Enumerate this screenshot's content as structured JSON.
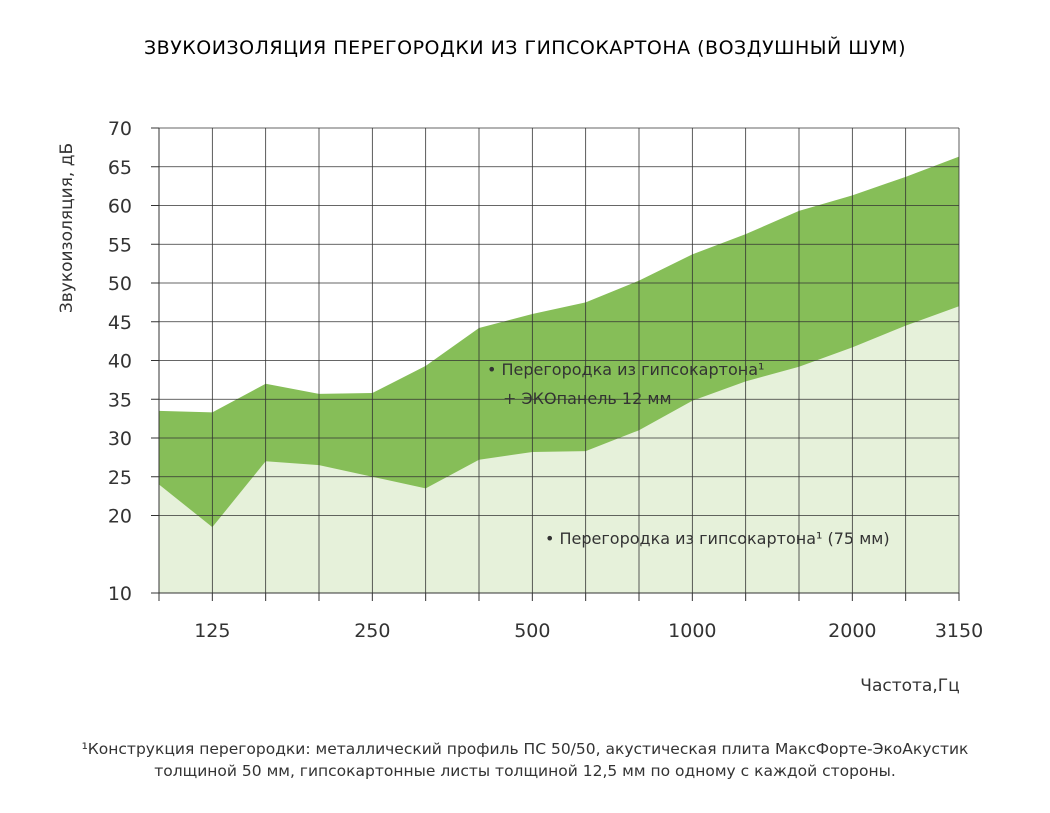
{
  "chart_data": {
    "type": "area",
    "title": "ЗВУКОИЗОЛЯЦИЯ ПЕРЕГОРОДКИ ИЗ ГИПСОКАРТОНА (ВОЗДУШНЫЙ ШУМ)",
    "ylabel": "Звукоизоляция, дБ",
    "xlabel": "Частота,Гц",
    "ylim": [
      10,
      70
    ],
    "yticks": [
      10,
      20,
      25,
      30,
      35,
      40,
      45,
      50,
      55,
      60,
      65,
      70
    ],
    "x_band_index_range": [
      0,
      15
    ],
    "xtick_labels": [
      {
        "band": 1,
        "label": "125"
      },
      {
        "band": 4,
        "label": "250"
      },
      {
        "band": 7,
        "label": "500"
      },
      {
        "band": 10,
        "label": "1000"
      },
      {
        "band": 13,
        "label": "2000"
      },
      {
        "band": 15,
        "label": "3150"
      }
    ],
    "grid": true,
    "series": [
      {
        "name": "Перегородка из гипсокартона¹ + ЭКОпанель 12 мм",
        "label_lines": [
          "• Перегородка из гипсокартона¹",
          "+ ЭКОпанель 12 мм"
        ],
        "color": "#86BE58",
        "x": [
          0,
          1,
          2,
          3,
          4,
          5,
          6,
          7,
          8,
          9,
          10,
          11,
          12,
          13,
          14,
          15
        ],
        "values": [
          33.5,
          33.3,
          37,
          35.7,
          35.8,
          39.3,
          44.2,
          46,
          47.5,
          50.3,
          53.7,
          56.3,
          59.3,
          61.3,
          63.7,
          66.3
        ]
      },
      {
        "name": "Перегородка из гипсокартона¹ (75 мм)",
        "label_lines": [
          "• Перегородка из гипсокартона¹  (75 мм)"
        ],
        "color": "#E6F1DA",
        "x": [
          0,
          1,
          2,
          3,
          4,
          5,
          6,
          7,
          8,
          9,
          10,
          11,
          12,
          13,
          14,
          15
        ],
        "values": [
          24,
          18.5,
          27,
          26.5,
          25,
          23.5,
          27.2,
          28.2,
          28.3,
          31,
          34.8,
          37.3,
          39.2,
          41.7,
          44.5,
          47
        ]
      }
    ],
    "footnote": [
      "¹Конструкция перегородки: металлический профиль ПС 50/50, акустическая плита МаксФорте-ЭкоАкустик",
      "толщиной 50 мм, гипсокартонные листы толщиной 12,5 мм по одному с каждой стороны."
    ]
  }
}
